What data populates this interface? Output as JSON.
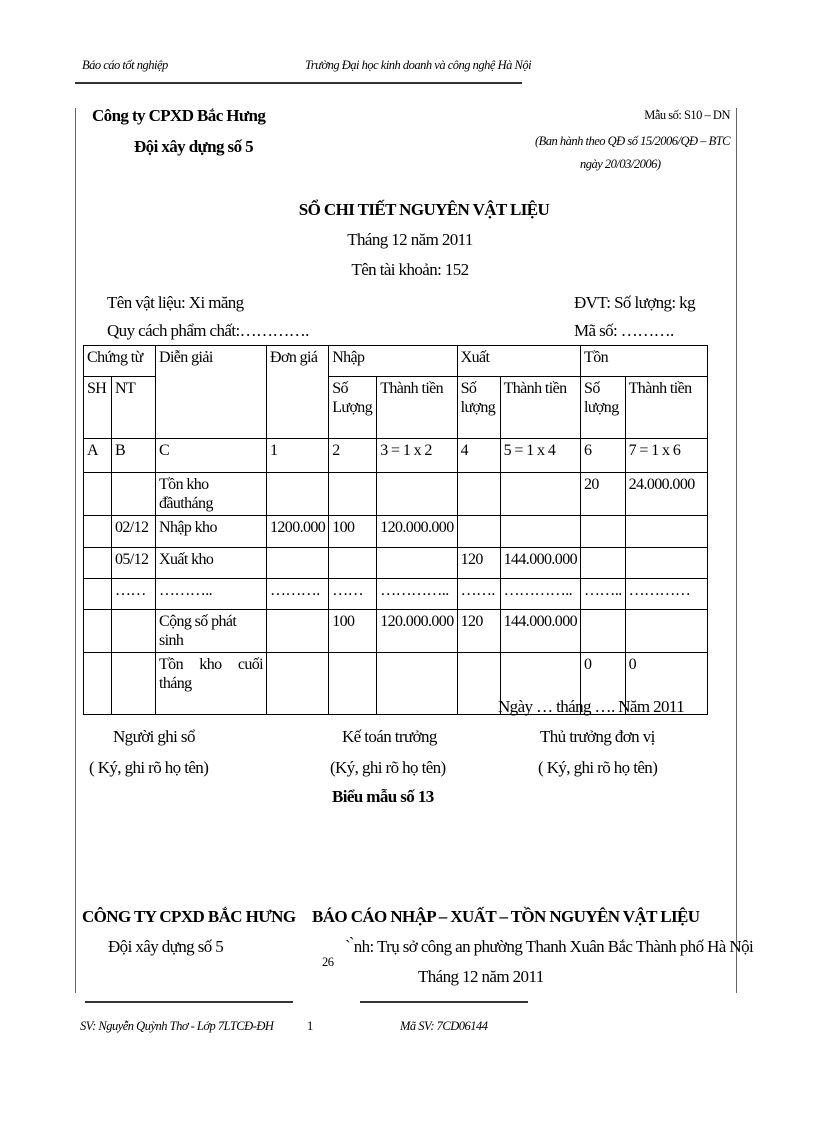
{
  "header": {
    "left": "Báo cáo tốt nghiệp",
    "center": "Trường Đại học kinh doanh và công nghệ Hà Nội"
  },
  "company": {
    "name": "Công ty CPXD Bắc Hưng",
    "unit": "Đội xây dựng số 5"
  },
  "form": {
    "code": "Mẫu số: S10 – DN",
    "issued": "(Ban hành theo QĐ số 15/2006/QĐ – BTC",
    "date": "ngày 20/03/2006)"
  },
  "title": {
    "main": "SỔ CHI TIẾT NGUYÊN VẬT LIỆU",
    "month": "Tháng 12 năm 2011",
    "account": "Tên tài khoản: 152"
  },
  "info": {
    "material": "Tên vật liệu: Xi măng",
    "unit": "ĐVT: Số lượng: kg",
    "quality": "Quy cách phẩm chất:………….",
    "code": "Mã số: ………."
  },
  "table": {
    "h1": [
      "Chứng từ",
      "Diễn giải",
      "Đơn giá",
      "Nhập",
      "Xuất",
      "Tồn"
    ],
    "h2": [
      "SH",
      "NT",
      "Số Lượng",
      "Thành tiền",
      "Số lượng",
      "Thành tiền",
      "Số lượng",
      "Thành tiền"
    ],
    "rows": [
      [
        "A",
        "B",
        "C",
        "1",
        "2",
        "3 = 1 x 2",
        "4",
        "5 = 1 x 4",
        "6",
        "7 = 1 x 6"
      ],
      [
        "",
        "",
        "Tồn kho đầutháng",
        "",
        "",
        "",
        "",
        "",
        "20",
        "24.000.000"
      ],
      [
        "",
        "02/12",
        "Nhập kho",
        "1200.000",
        "100",
        "120.000.000",
        "",
        "",
        "",
        ""
      ],
      [
        "",
        "05/12",
        "Xuất kho",
        "",
        "",
        "",
        "120",
        "144.000.000",
        "",
        ""
      ],
      [
        "",
        "……",
        "………..",
        "……….",
        "……",
        "…………..",
        "…….",
        "…………..",
        "……..",
        "…………"
      ],
      [
        "",
        "",
        "Cộng số phát sinh",
        "",
        "100",
        "120.000.000",
        "120",
        "144.000.000",
        "",
        ""
      ],
      [
        "",
        "",
        "Tồn   kho   cuối tháng",
        "",
        "",
        "",
        "",
        "",
        "0",
        "0"
      ]
    ]
  },
  "signatures": {
    "date": "Ngày … tháng …. Năm 2011",
    "s1": "Người ghi sổ",
    "s1n": "( Ký, ghi rõ họ tên)",
    "s2": "Kế toán trưởng",
    "s2n": "(Ký, ghi rõ họ tên)",
    "s3": "Thủ trưởng đơn vị",
    "s3n": "( Ký, ghi rõ họ tên)"
  },
  "caption": "Biểu mẫu số 13",
  "next": {
    "company": "CÔNG TY CPXD BẮC HƯNG",
    "unit": "Đội xây dựng số 5",
    "title": "BÁO CÁO NHẬP – XUẤT – TỒN NGUYÊN VẬT LIỆU",
    "location": "` ̀nh: Trụ sở công an phường Thanh Xuân Bắc Thành phố Hà Nội",
    "overlay": "26",
    "month": "Tháng 12 năm 2011"
  },
  "footer": {
    "student": "SV: Nguyễn Quỳnh Thơ - Lớp 7LTCĐ-ĐH",
    "page": "1",
    "id": "Mã SV: 7CD06144"
  }
}
